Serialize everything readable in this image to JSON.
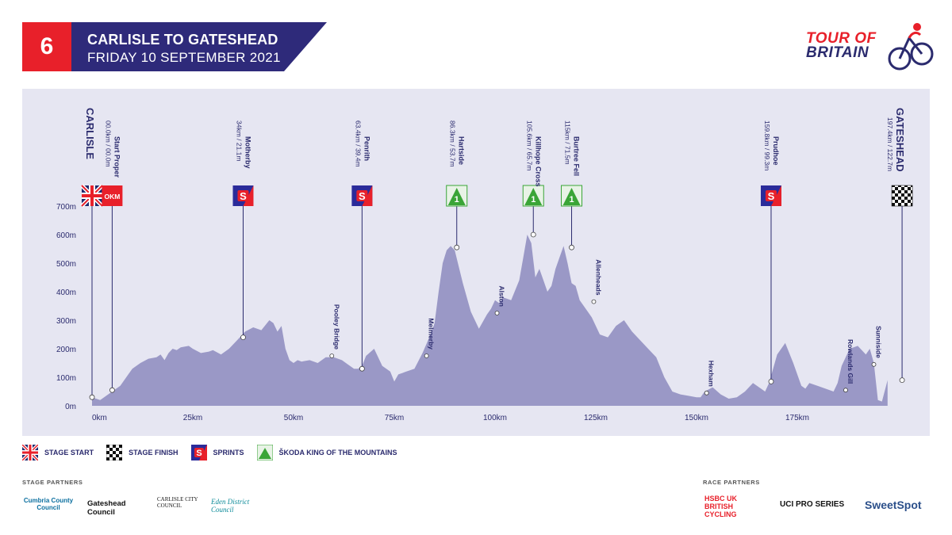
{
  "header": {
    "stage_number": "6",
    "title": "CARLISLE TO GATESHEAD",
    "date": "FRIDAY 10 SEPTEMBER 2021",
    "logo_line1": "TOUR OF",
    "logo_line2": "BRITAIN"
  },
  "colors": {
    "red": "#e8202a",
    "navy": "#2b2b6e",
    "band": "#2e2a7a",
    "profile_fill": "#9a98c6",
    "panel": "#e6e6f2",
    "kom_green": "#3aa537"
  },
  "legend": [
    {
      "icon": "union-flag-icon",
      "label": "STAGE START"
    },
    {
      "icon": "checkered-flag-icon",
      "label": "STAGE FINISH"
    },
    {
      "icon": "sprint-icon",
      "label": "SPRINTS"
    },
    {
      "icon": "kom-mountain-icon",
      "label": "ŠKODA KING OF THE MOUNTAINS"
    }
  ],
  "partners": {
    "stage_label": "STAGE PARTNERS",
    "race_label": "RACE PARTNERS",
    "stage": [
      "Cumbria County Council",
      "Gateshead Council",
      "CARLISLE CITY COUNCIL",
      "Eden District Council"
    ],
    "race": [
      "HSBC UK BRITISH CYCLING",
      "UCI PRO SERIES",
      "SweetSpot"
    ]
  },
  "chart_data": {
    "type": "area",
    "xlabel": "",
    "ylabel": "",
    "xlim": [
      0,
      200
    ],
    "ylim": [
      0,
      700
    ],
    "x_ticks": [
      0,
      25,
      50,
      75,
      100,
      125,
      150,
      175
    ],
    "x_tick_labels": [
      "0km",
      "25km",
      "50km",
      "75km",
      "100km",
      "125km",
      "150km",
      "175km"
    ],
    "y_ticks": [
      0,
      100,
      200,
      300,
      400,
      500,
      600,
      700
    ],
    "y_tick_labels": [
      "0m",
      "100m",
      "200m",
      "300m",
      "400m",
      "500m",
      "600m",
      "700m"
    ],
    "profile": {
      "x": [
        0,
        2,
        4,
        5,
        7,
        9,
        10,
        12,
        14,
        16,
        17,
        18,
        19,
        20,
        21,
        22,
        24,
        25,
        27,
        29,
        30,
        32,
        34,
        36,
        38,
        40,
        42,
        44,
        45,
        46,
        47,
        48,
        49,
        50,
        51,
        52,
        54,
        56,
        58,
        60,
        62,
        63,
        64,
        65,
        66,
        67,
        68,
        70,
        72,
        74,
        75,
        76,
        78,
        80,
        82,
        84,
        85,
        86,
        87,
        88,
        89,
        90,
        92,
        94,
        96,
        98,
        99,
        100,
        101,
        102,
        104,
        106,
        107,
        108,
        109,
        110,
        111,
        112,
        113,
        114,
        115,
        116,
        117,
        118,
        119,
        120,
        121,
        122,
        124,
        126,
        128,
        130,
        132,
        134,
        136,
        138,
        140,
        142,
        144,
        146,
        148,
        150,
        151,
        152,
        154,
        156,
        158,
        160,
        162,
        164,
        166,
        167,
        168,
        170,
        172,
        174,
        176,
        177,
        178,
        180,
        182,
        184,
        185,
        186,
        188,
        190,
        192,
        193,
        194,
        195,
        196,
        197.4
      ],
      "y": [
        30,
        20,
        40,
        50,
        70,
        110,
        130,
        150,
        165,
        170,
        180,
        160,
        185,
        200,
        195,
        205,
        210,
        200,
        185,
        190,
        195,
        180,
        200,
        230,
        260,
        275,
        265,
        300,
        290,
        260,
        280,
        200,
        160,
        150,
        160,
        155,
        160,
        150,
        170,
        170,
        160,
        150,
        140,
        130,
        130,
        140,
        175,
        200,
        140,
        120,
        85,
        110,
        120,
        130,
        185,
        250,
        290,
        400,
        500,
        545,
        560,
        545,
        430,
        330,
        270,
        320,
        340,
        370,
        360,
        380,
        370,
        440,
        520,
        600,
        570,
        450,
        480,
        440,
        400,
        420,
        480,
        520,
        560,
        500,
        430,
        420,
        370,
        350,
        310,
        250,
        240,
        280,
        300,
        260,
        230,
        200,
        170,
        100,
        50,
        40,
        35,
        30,
        30,
        50,
        65,
        40,
        25,
        30,
        50,
        80,
        60,
        50,
        80,
        180,
        220,
        150,
        70,
        60,
        80,
        70,
        60,
        50,
        80,
        140,
        200,
        210,
        180,
        200,
        150,
        20,
        15,
        90
      ]
    },
    "markers": [
      {
        "km": 0.0,
        "elev": 30,
        "name": "CARLISLE",
        "dist": "",
        "kind": "start",
        "stem_top": 655
      },
      {
        "km": 5.0,
        "elev": 55,
        "name": "Start Proper",
        "dist": "00.0km / 00.0m",
        "kind": "okm",
        "stem_top": 655
      },
      {
        "km": 37.5,
        "elev": 240,
        "name": "Motherby",
        "dist": "34km / 21.1m",
        "kind": "sprint",
        "stem_top": 655
      },
      {
        "km": 67.0,
        "elev": 130,
        "name": "Penrith",
        "dist": "63.4km / 39.4m",
        "kind": "sprint",
        "stem_top": 655
      },
      {
        "km": 90.5,
        "elev": 555,
        "name": "Hartside",
        "dist": "86.3km / 53.7m",
        "kind": "kom",
        "stem_top": 655
      },
      {
        "km": 109.5,
        "elev": 600,
        "name": "Killhope Cross",
        "dist": "105.6km / 65.7m",
        "kind": "kom",
        "stem_top": 655
      },
      {
        "km": 119.0,
        "elev": 555,
        "name": "Burtree Fell",
        "dist": "115km / 71.5m",
        "kind": "kom",
        "stem_top": 655
      },
      {
        "km": 168.5,
        "elev": 85,
        "name": "Prudhoe",
        "dist": "159.8km / 99.3m",
        "kind": "sprint",
        "stem_top": 655
      },
      {
        "km": 201.0,
        "elev": 90,
        "name": "GATESHEAD",
        "dist": "197.4km / 122.7m",
        "kind": "finish",
        "stem_top": 655
      }
    ],
    "places": [
      {
        "km": 59.5,
        "elev": 175,
        "name": "Pooley Bridge"
      },
      {
        "km": 83.0,
        "elev": 175,
        "name": "Melmerby"
      },
      {
        "km": 100.5,
        "elev": 325,
        "name": "Alston"
      },
      {
        "km": 124.5,
        "elev": 365,
        "name": "Allenheads"
      },
      {
        "km": 152.5,
        "elev": 45,
        "name": "Hexham"
      },
      {
        "km": 187.0,
        "elev": 55,
        "name": "Rowlands Gill"
      },
      {
        "km": 194.0,
        "elev": 145,
        "name": "Sunniside"
      }
    ]
  }
}
